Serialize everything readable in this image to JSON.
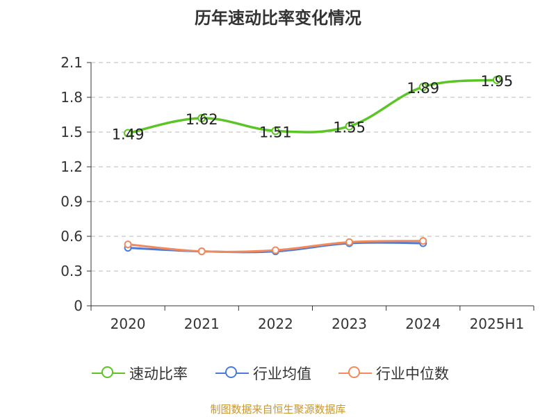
{
  "chart_data": {
    "type": "line",
    "title": "历年速动比率变化情况",
    "categories": [
      "2020",
      "2021",
      "2022",
      "2023",
      "2024",
      "2025H1"
    ],
    "y_ticks": [
      "0",
      "0.3",
      "0.6",
      "0.9",
      "1.2",
      "1.5",
      "1.8",
      "2.1"
    ],
    "ylim": [
      0,
      2.1
    ],
    "grid": true,
    "legend_position": "bottom",
    "series": [
      {
        "name": "速动比率",
        "color": "#5cc526",
        "values": [
          1.49,
          1.62,
          1.51,
          1.55,
          1.89,
          1.95
        ],
        "data_labels": [
          "1.49",
          "1.62",
          "1.51",
          "1.55",
          "1.89",
          "1.95"
        ]
      },
      {
        "name": "行业均值",
        "color": "#4a7bd9",
        "values": [
          0.5,
          0.47,
          0.47,
          0.54,
          0.54,
          null
        ]
      },
      {
        "name": "行业中位数",
        "color": "#f08a5d",
        "values": [
          0.53,
          0.47,
          0.48,
          0.55,
          0.56,
          null
        ]
      }
    ]
  },
  "source_note": "制图数据来自恒生聚源数据库"
}
